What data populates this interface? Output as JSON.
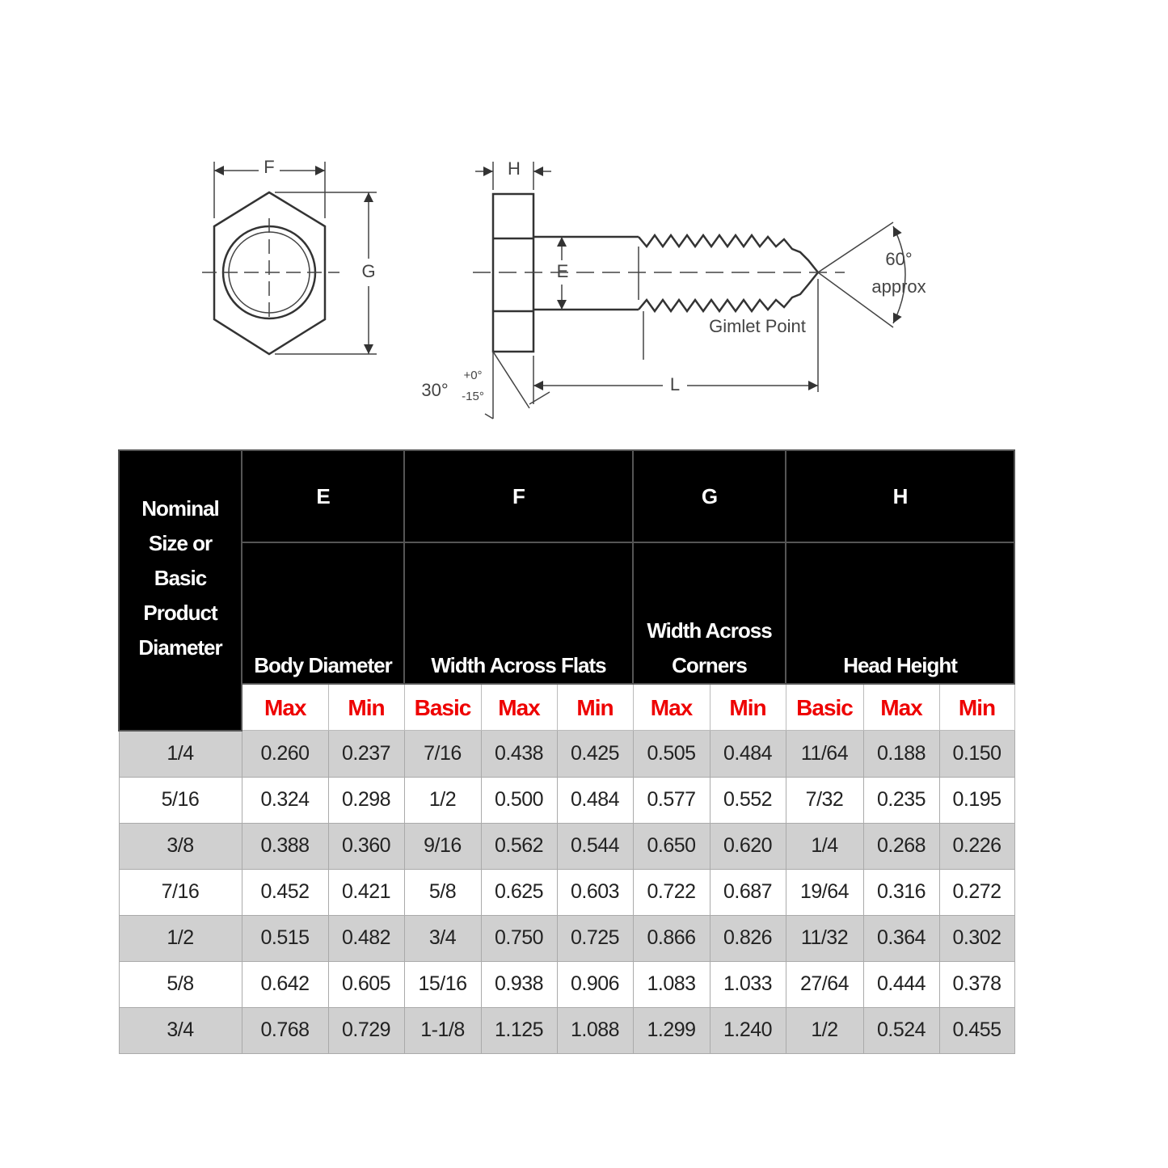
{
  "diagram": {
    "labels": [
      "F",
      "G",
      "H",
      "E",
      "60°",
      "approx",
      "Gimlet Point",
      "L",
      "30°",
      "+0°",
      "-15°"
    ]
  },
  "table": {
    "size_header": "Nominal Size or Basic Product Diameter",
    "groups": [
      {
        "letter": "E",
        "name": "Body Diameter",
        "columns": [
          "Max",
          "Min"
        ]
      },
      {
        "letter": "F",
        "name": "Width Across Flats",
        "columns": [
          "Basic",
          "Max",
          "Min"
        ]
      },
      {
        "letter": "G",
        "name": "Width Across Corners",
        "columns": [
          "Max",
          "Min"
        ]
      },
      {
        "letter": "H",
        "name": "Head Height",
        "columns": [
          "Basic",
          "Max",
          "Min"
        ]
      }
    ],
    "rows": [
      [
        "1/4",
        "0.260",
        "0.237",
        "7/16",
        "0.438",
        "0.425",
        "0.505",
        "0.484",
        "11/64",
        "0.188",
        "0.150"
      ],
      [
        "5/16",
        "0.324",
        "0.298",
        "1/2",
        "0.500",
        "0.484",
        "0.577",
        "0.552",
        "7/32",
        "0.235",
        "0.195"
      ],
      [
        "3/8",
        "0.388",
        "0.360",
        "9/16",
        "0.562",
        "0.544",
        "0.650",
        "0.620",
        "1/4",
        "0.268",
        "0.226"
      ],
      [
        "7/16",
        "0.452",
        "0.421",
        "5/8",
        "0.625",
        "0.603",
        "0.722",
        "0.687",
        "19/64",
        "0.316",
        "0.272"
      ],
      [
        "1/2",
        "0.515",
        "0.482",
        "3/4",
        "0.750",
        "0.725",
        "0.866",
        "0.826",
        "11/32",
        "0.364",
        "0.302"
      ],
      [
        "5/8",
        "0.642",
        "0.605",
        "15/16",
        "0.938",
        "0.906",
        "1.083",
        "1.033",
        "27/64",
        "0.444",
        "0.378"
      ],
      [
        "3/4",
        "0.768",
        "0.729",
        "1-1/8",
        "1.125",
        "1.088",
        "1.299",
        "1.240",
        "1/2",
        "0.524",
        "0.455"
      ]
    ]
  }
}
